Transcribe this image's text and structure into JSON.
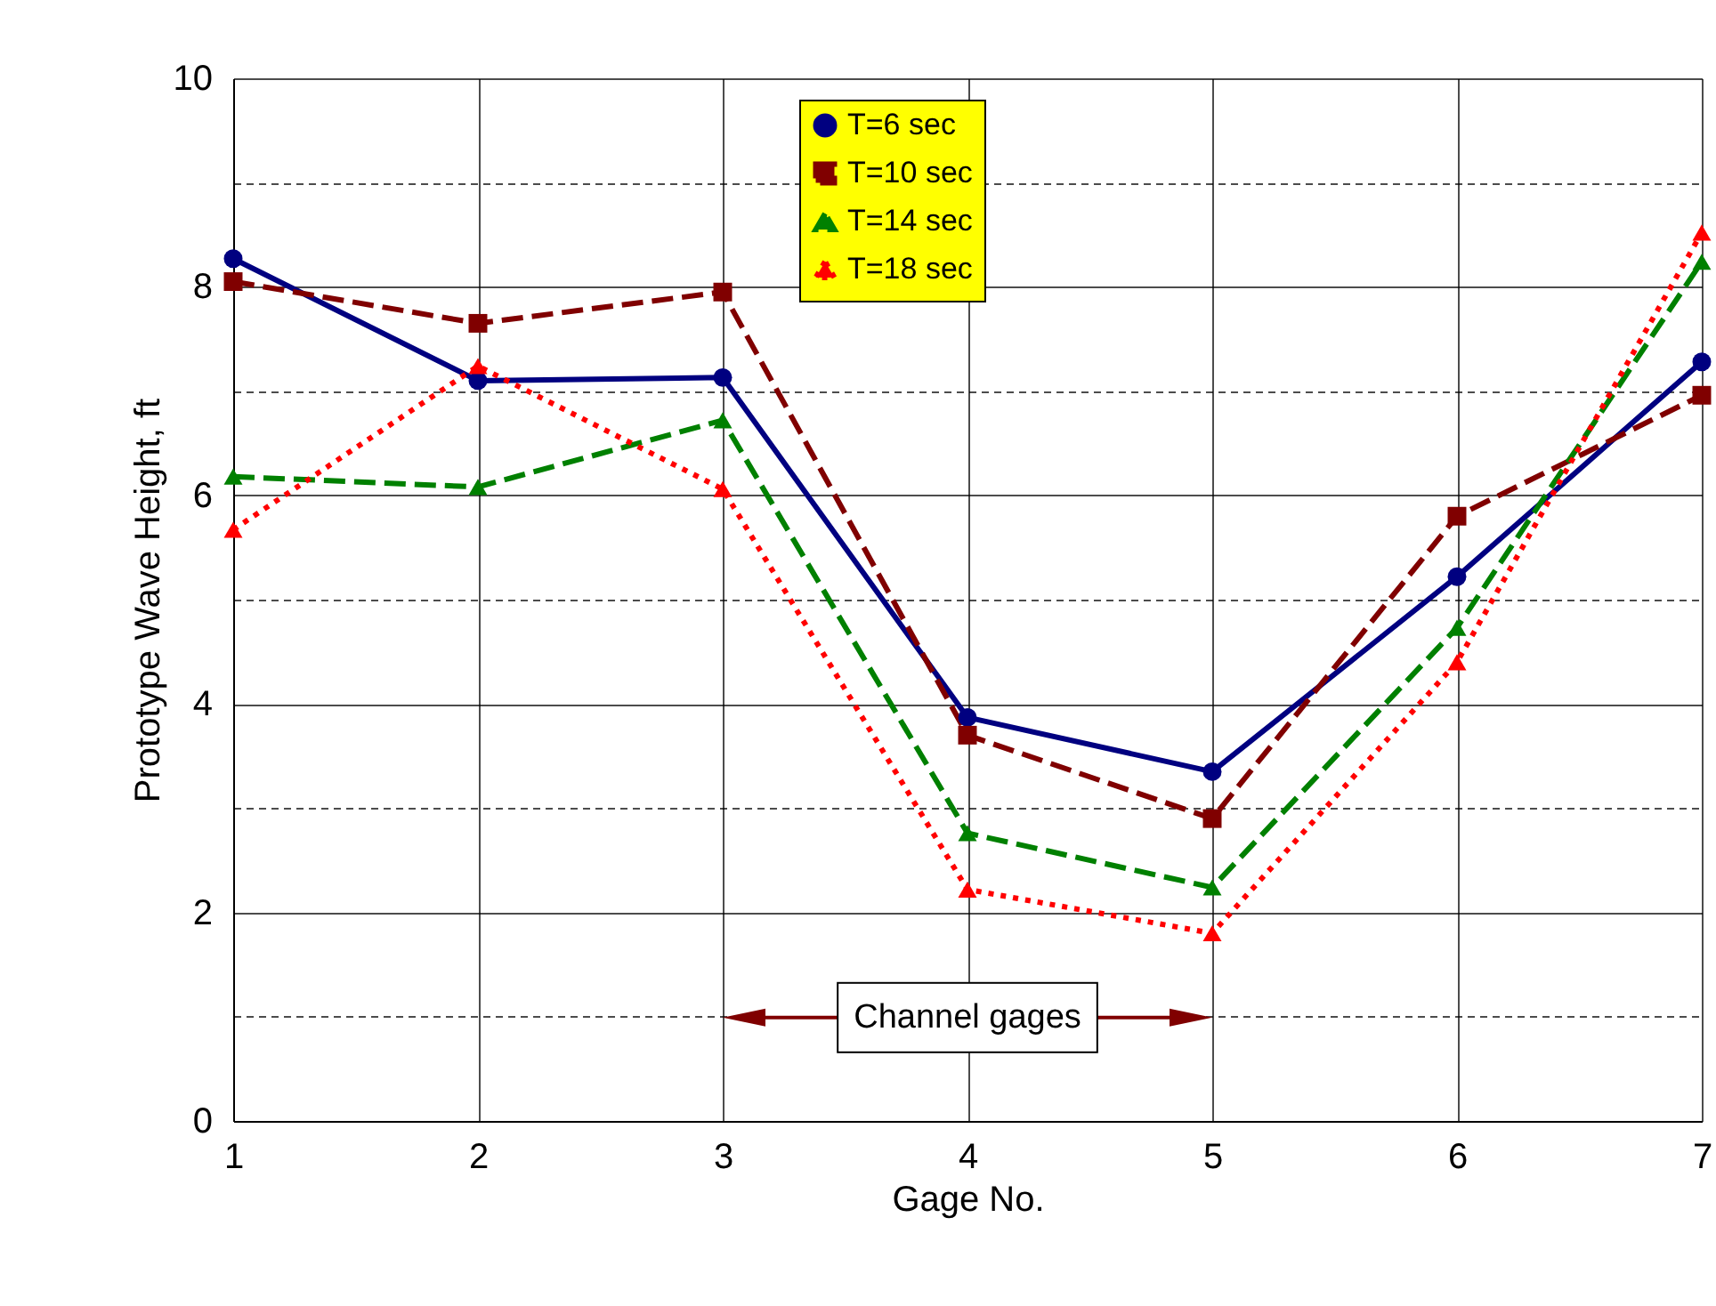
{
  "chart_data": {
    "type": "line",
    "xlabel": "Gage No.",
    "ylabel": "Prototype Wave Height, ft",
    "x": [
      1,
      2,
      3,
      4,
      5,
      6,
      7
    ],
    "series": [
      {
        "name": "T=6 sec",
        "color": "#000080",
        "marker": "circle",
        "line_style": "solid",
        "values": [
          8.27,
          7.1,
          7.13,
          3.87,
          3.35,
          5.22,
          7.28
        ]
      },
      {
        "name": "T=10 sec",
        "color": "#800000",
        "marker": "square",
        "line_style": "dashed",
        "values": [
          8.05,
          7.65,
          7.95,
          3.7,
          2.9,
          5.8,
          6.96
        ]
      },
      {
        "name": "T=14 sec",
        "color": "#008000",
        "marker": "triangle",
        "line_style": "dashed",
        "values": [
          6.18,
          6.08,
          6.72,
          2.76,
          2.24,
          4.73,
          8.24
        ]
      },
      {
        "name": "T=18 sec",
        "color": "#ff0000",
        "marker": "triangle",
        "line_style": "dotted",
        "values": [
          5.67,
          7.24,
          6.06,
          2.22,
          1.8,
          4.4,
          8.52
        ]
      }
    ],
    "xlim": [
      1,
      7
    ],
    "xticks": [
      1,
      2,
      3,
      4,
      5,
      6,
      7
    ],
    "ylim": [
      0,
      10
    ],
    "yticks": [
      0,
      {
        "value": 1,
        "label": null
      },
      2,
      {
        "value": 3,
        "label": null
      },
      4,
      {
        "value": 5,
        "label": null
      },
      6,
      {
        "value": 7,
        "label": null
      },
      8,
      {
        "value": 9,
        "label": null
      },
      10
    ],
    "grid": true,
    "legend": "top",
    "annotations": [
      "Channel gages"
    ]
  }
}
